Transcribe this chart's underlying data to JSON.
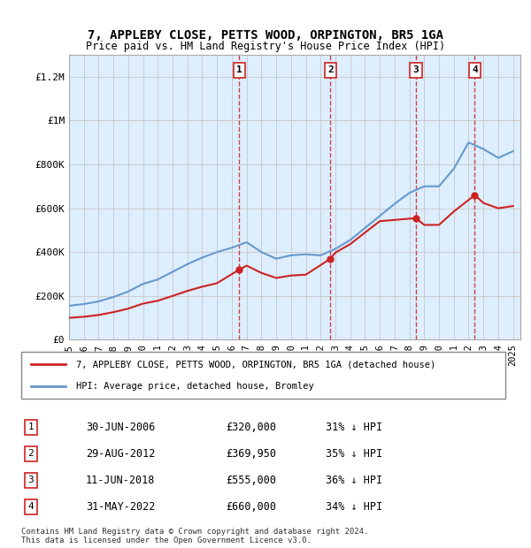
{
  "title1": "7, APPLEBY CLOSE, PETTS WOOD, ORPINGTON, BR5 1GA",
  "title2": "Price paid vs. HM Land Registry's House Price Index (HPI)",
  "ylabel_ticks": [
    "£0",
    "£200K",
    "£400K",
    "£600K",
    "£800K",
    "£1M",
    "£1.2M"
  ],
  "ytick_values": [
    0,
    200000,
    400000,
    600000,
    800000,
    1000000,
    1200000
  ],
  "ylim": [
    0,
    1300000
  ],
  "xlim_start": 1995.0,
  "xlim_end": 2025.5,
  "sale_dates": [
    2006.5,
    2012.67,
    2018.44,
    2022.42
  ],
  "sale_prices": [
    320000,
    369950,
    555000,
    660000
  ],
  "sale_labels": [
    "1",
    "2",
    "3",
    "4"
  ],
  "legend_sale_label": "7, APPLEBY CLOSE, PETTS WOOD, ORPINGTON, BR5 1GA (detached house)",
  "legend_hpi_label": "HPI: Average price, detached house, Bromley",
  "table_rows": [
    [
      "1",
      "30-JUN-2006",
      "£320,000",
      "31% ↓ HPI"
    ],
    [
      "2",
      "29-AUG-2012",
      "£369,950",
      "35% ↓ HPI"
    ],
    [
      "3",
      "11-JUN-2018",
      "£555,000",
      "36% ↓ HPI"
    ],
    [
      "4",
      "31-MAY-2022",
      "£660,000",
      "34% ↓ HPI"
    ]
  ],
  "footnote1": "Contains HM Land Registry data © Crown copyright and database right 2024.",
  "footnote2": "This data is licensed under the Open Government Licence v3.0.",
  "hpi_color": "#6699cc",
  "sale_color": "#cc2222",
  "dashed_color": "#cc2222",
  "bg_color": "#ddeeff",
  "plot_bg": "#ffffff",
  "grid_color": "#cccccc",
  "x_ticks": [
    1995,
    1996,
    1997,
    1998,
    1999,
    2000,
    2001,
    2002,
    2003,
    2004,
    2005,
    2006,
    2007,
    2008,
    2009,
    2010,
    2011,
    2012,
    2013,
    2014,
    2015,
    2016,
    2017,
    2018,
    2019,
    2020,
    2021,
    2022,
    2023,
    2024,
    2025
  ]
}
